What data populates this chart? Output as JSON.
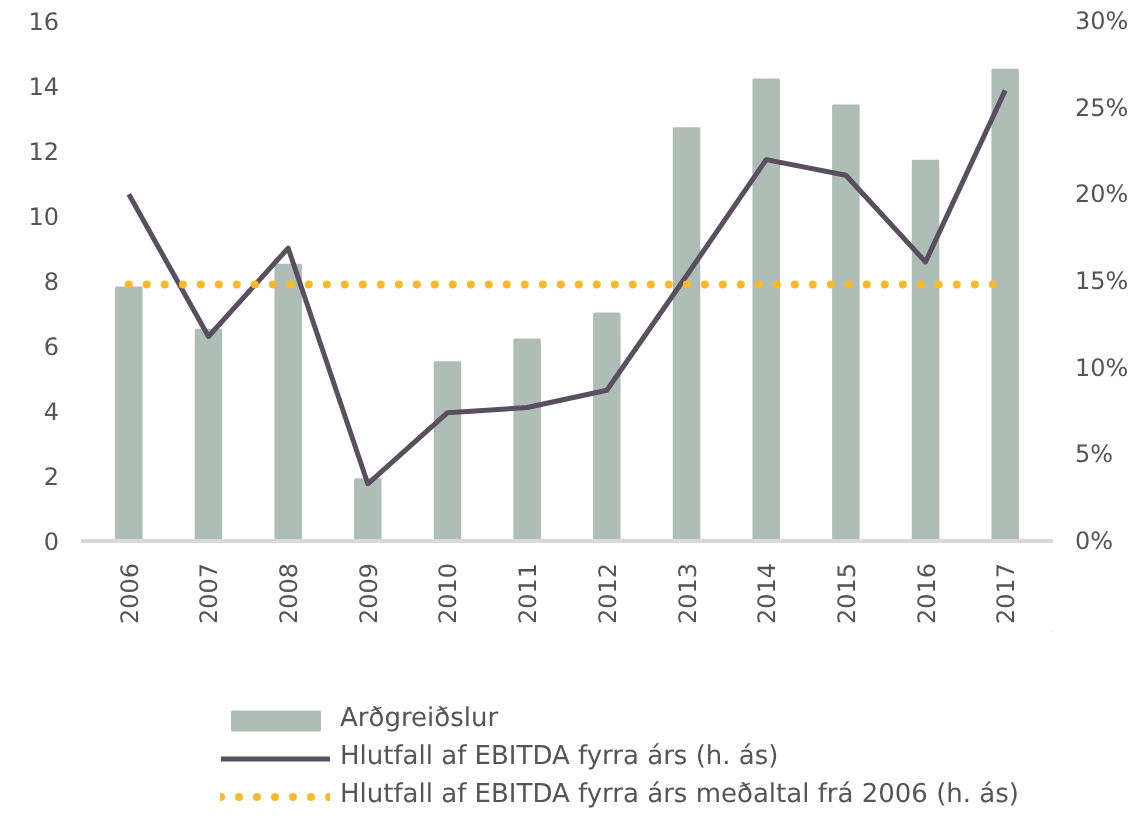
{
  "chart_data": {
    "type": "bar",
    "categories": [
      "2006",
      "2007",
      "2008",
      "2009",
      "2010",
      "2011",
      "2012",
      "2013",
      "2014",
      "2015",
      "2016",
      "2017"
    ],
    "series": [
      {
        "name": "Arðgreiðslur",
        "color": "#aebdb5",
        "values": [
          7.8,
          6.5,
          8.5,
          1.9,
          5.5,
          6.2,
          7.0,
          12.7,
          14.2,
          13.4,
          11.7,
          14.5
        ]
      },
      {
        "name": "Hlutfall af EBITDA fyrra árs (h. ás)",
        "type": "line",
        "axis": "y2",
        "color": "#5a4f5f",
        "line_style": "solid",
        "values": [
          20.0,
          11.8,
          16.9,
          3.3,
          7.4,
          7.7,
          8.7,
          15.3,
          22.0,
          21.1,
          16.1,
          26.0
        ]
      },
      {
        "name": "Hlutfall af EBITDA fyrra árs meðaltal frá 2006 (h. ás)",
        "type": "line",
        "axis": "y2",
        "color": "#fbb829",
        "line_style": "dotted",
        "values": [
          14.8,
          14.8,
          14.8,
          14.8,
          14.8,
          14.8,
          14.8,
          14.8,
          14.8,
          14.8,
          14.8,
          14.8
        ]
      }
    ],
    "ylim": [
      0,
      16
    ],
    "yticks": [
      0,
      2,
      4,
      6,
      8,
      10,
      12,
      14,
      16
    ],
    "y2lim": [
      0,
      30
    ],
    "y2ticks": [
      {
        "value": 0,
        "label": "0%"
      },
      {
        "value": 5,
        "label": "5%"
      },
      {
        "value": 10,
        "label": "10%"
      },
      {
        "value": 15,
        "label": "15%"
      },
      {
        "value": 20,
        "label": "20%"
      },
      {
        "value": 25,
        "label": "25%"
      },
      {
        "value": 30,
        "label": "30%"
      }
    ],
    "grid": false,
    "legend": "bottom"
  }
}
